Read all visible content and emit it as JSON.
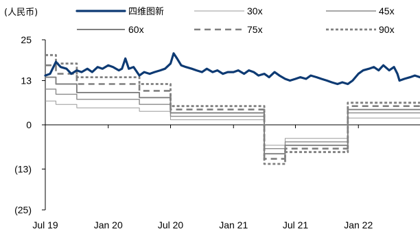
{
  "chart_data": {
    "type": "line",
    "unit_label": "(人民币)",
    "title": "",
    "xlabel": "",
    "ylabel": "",
    "ylim": [
      -25,
      25
    ],
    "y_ticks": [
      25,
      13,
      0,
      -13,
      -25
    ],
    "y_tick_labels": [
      "25",
      "13",
      "0",
      "(13)",
      "(25)"
    ],
    "x_ticks": [
      "2019-07-01",
      "2020-01-01",
      "2020-07-01",
      "2021-01-01",
      "2021-07-01",
      "2022-01-01"
    ],
    "x_tick_labels": [
      "Jul 19",
      "Jan 20",
      "Jul 20",
      "Jan 21",
      "Jul 21",
      "Jan 22"
    ],
    "xlim": [
      "2019-07-01",
      "2022-06-30"
    ],
    "grid": false,
    "legend_position": "top",
    "colors": {
      "main": "#0d3a73",
      "thin": "#9a9a9a",
      "medium": "#8a8a8a",
      "thick": "#7f7f7f"
    },
    "series": [
      {
        "name": "四维图新",
        "style": "solid-bold",
        "x": [
          "2019-07-01",
          "2019-07-15",
          "2019-08-01",
          "2019-08-15",
          "2019-09-01",
          "2019-09-15",
          "2019-10-01",
          "2019-10-15",
          "2019-11-01",
          "2019-11-15",
          "2019-12-01",
          "2019-12-15",
          "2020-01-01",
          "2020-01-15",
          "2020-02-01",
          "2020-02-10",
          "2020-02-20",
          "2020-03-01",
          "2020-03-15",
          "2020-04-01",
          "2020-04-15",
          "2020-05-01",
          "2020-05-15",
          "2020-06-01",
          "2020-06-15",
          "2020-07-01",
          "2020-07-10",
          "2020-07-20",
          "2020-08-01",
          "2020-08-15",
          "2020-09-01",
          "2020-09-15",
          "2020-10-01",
          "2020-10-15",
          "2020-11-01",
          "2020-11-15",
          "2020-12-01",
          "2020-12-15",
          "2021-01-01",
          "2021-01-15",
          "2021-02-01",
          "2021-02-15",
          "2021-03-01",
          "2021-03-15",
          "2021-04-01",
          "2021-04-15",
          "2021-05-01",
          "2021-05-15",
          "2021-06-01",
          "2021-06-15",
          "2021-07-01",
          "2021-07-15",
          "2021-08-01",
          "2021-08-15",
          "2021-09-01",
          "2021-09-15",
          "2021-10-01",
          "2021-10-15",
          "2021-11-01",
          "2021-11-15",
          "2021-12-01",
          "2021-12-15",
          "2022-01-01",
          "2022-01-15",
          "2022-02-01",
          "2022-02-15",
          "2022-03-01",
          "2022-03-15",
          "2022-04-01",
          "2022-04-15",
          "2022-04-25",
          "2022-05-01",
          "2022-05-15",
          "2022-06-01",
          "2022-06-15",
          "2022-06-30"
        ],
        "values": [
          14.5,
          15.0,
          18.5,
          17.0,
          16.5,
          15.0,
          16.0,
          15.5,
          16.5,
          15.5,
          17.0,
          16.5,
          17.5,
          17.0,
          16.0,
          16.5,
          19.5,
          16.5,
          17.0,
          14.5,
          15.5,
          15.0,
          15.5,
          16.0,
          16.5,
          18.0,
          21.0,
          19.5,
          17.5,
          17.0,
          16.5,
          16.0,
          15.5,
          16.5,
          15.5,
          16.0,
          15.0,
          15.5,
          15.5,
          16.0,
          15.0,
          16.0,
          15.5,
          14.5,
          15.0,
          14.0,
          15.5,
          14.5,
          13.5,
          13.0,
          13.5,
          14.0,
          13.5,
          14.5,
          14.0,
          13.5,
          13.0,
          12.5,
          12.0,
          12.5,
          12.0,
          13.0,
          15.0,
          16.0,
          16.5,
          17.0,
          16.0,
          17.5,
          16.0,
          17.0,
          15.0,
          13.0,
          13.5,
          14.0,
          14.5,
          14.0
        ]
      },
      {
        "name": "30x",
        "style": "solid-thin",
        "x": [
          "2019-07-01",
          "2019-08-01",
          "2019-08-01",
          "2019-10-01",
          "2019-10-01",
          "2020-04-01",
          "2020-04-01",
          "2020-07-01",
          "2020-07-01",
          "2021-04-01",
          "2021-04-01",
          "2021-06-01",
          "2021-06-01",
          "2021-12-01",
          "2021-12-01",
          "2022-06-30"
        ],
        "values": [
          7.0,
          7.0,
          6.0,
          6.0,
          5.0,
          5.0,
          4.0,
          4.0,
          1.5,
          1.5,
          -6.0,
          -6.0,
          -4.0,
          -4.0,
          2.0,
          2.0
        ]
      },
      {
        "name": "45x",
        "style": "solid-medium",
        "x": [
          "2019-07-01",
          "2019-08-01",
          "2019-08-01",
          "2019-10-01",
          "2019-10-01",
          "2020-04-01",
          "2020-04-01",
          "2020-07-01",
          "2020-07-01",
          "2021-04-01",
          "2021-04-01",
          "2021-06-01",
          "2021-06-01",
          "2021-12-01",
          "2021-12-01",
          "2022-06-30"
        ],
        "values": [
          10.5,
          10.5,
          9.0,
          9.0,
          7.5,
          7.5,
          6.0,
          6.0,
          2.5,
          2.5,
          -7.0,
          -7.0,
          -5.0,
          -5.0,
          3.5,
          3.5
        ]
      },
      {
        "name": "60x",
        "style": "solid-thick",
        "x": [
          "2019-07-01",
          "2019-08-01",
          "2019-08-01",
          "2019-10-01",
          "2019-10-01",
          "2020-04-01",
          "2020-04-01",
          "2020-07-01",
          "2020-07-01",
          "2021-04-01",
          "2021-04-01",
          "2021-06-01",
          "2021-06-01",
          "2021-12-01",
          "2021-12-01",
          "2022-06-30"
        ],
        "values": [
          14.0,
          14.0,
          12.0,
          12.0,
          9.5,
          9.5,
          8.0,
          8.0,
          3.5,
          3.5,
          -8.5,
          -8.5,
          -6.0,
          -6.0,
          4.5,
          4.5
        ]
      },
      {
        "name": "75x",
        "style": "dashed",
        "x": [
          "2019-07-01",
          "2019-08-01",
          "2019-08-01",
          "2019-10-01",
          "2019-10-01",
          "2020-04-01",
          "2020-04-01",
          "2020-07-01",
          "2020-07-01",
          "2021-04-01",
          "2021-04-01",
          "2021-06-01",
          "2021-06-01",
          "2021-12-01",
          "2021-12-01",
          "2022-06-30"
        ],
        "values": [
          17.5,
          17.5,
          15.0,
          15.0,
          12.0,
          12.0,
          10.0,
          10.0,
          4.5,
          4.5,
          -10.0,
          -10.0,
          -7.0,
          -7.0,
          5.5,
          5.5
        ]
      },
      {
        "name": "90x",
        "style": "dotted",
        "x": [
          "2019-07-01",
          "2019-08-01",
          "2019-08-01",
          "2019-10-01",
          "2019-10-01",
          "2020-04-01",
          "2020-04-01",
          "2020-07-01",
          "2020-07-01",
          "2021-04-01",
          "2021-04-01",
          "2021-06-01",
          "2021-06-01",
          "2021-12-01",
          "2021-12-01",
          "2022-06-30"
        ],
        "values": [
          20.5,
          20.5,
          18.0,
          18.0,
          14.0,
          14.0,
          12.0,
          12.0,
          5.5,
          5.5,
          -11.5,
          -11.5,
          -8.0,
          -8.0,
          6.5,
          6.5
        ]
      }
    ]
  }
}
